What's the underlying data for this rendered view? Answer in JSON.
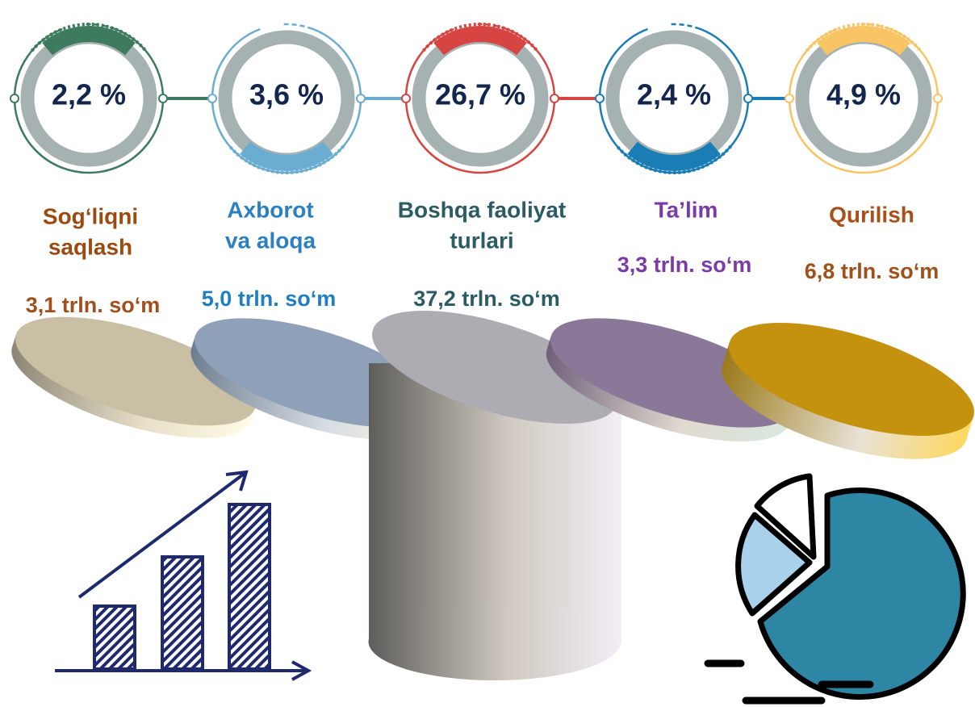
{
  "items": [
    {
      "percent": "2,2 %",
      "name": [
        "Sog‘liqni",
        "saqlash"
      ],
      "amount": "3,1 trln. so‘m"
    },
    {
      "percent": "3,6 %",
      "name": [
        "Axborot",
        "va aloqa"
      ],
      "amount": "5,0 trln. so‘m"
    },
    {
      "percent": "26,7 %",
      "name": [
        "Boshqa faoliyat",
        "turlari"
      ],
      "amount": "37,2 trln. so‘m"
    },
    {
      "percent": "2,4 %",
      "name": [
        "Ta’lim"
      ],
      "amount": "3,3 trln. so‘m"
    },
    {
      "percent": "4,9 %",
      "name": [
        "Qurilish"
      ],
      "amount": "6,8 trln. so‘m"
    }
  ]
}
